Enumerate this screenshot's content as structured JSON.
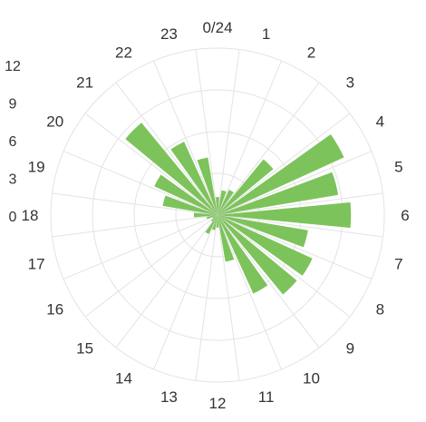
{
  "chart_data": {
    "type": "polar-bar",
    "title": "",
    "angular_labels": [
      "0/24",
      "1",
      "2",
      "3",
      "4",
      "5",
      "6",
      "7",
      "8",
      "9",
      "10",
      "11",
      "12",
      "13",
      "14",
      "15",
      "16",
      "17",
      "18",
      "19",
      "20",
      "21",
      "22",
      "23"
    ],
    "radial_ticks": [
      "0",
      "3",
      "6",
      "9",
      "12"
    ],
    "radial_range": [
      0,
      12
    ],
    "grid": true,
    "series": [
      {
        "color": "#7dc35b",
        "values": [
          1.3,
          1.8,
          2.0,
          5.2,
          10.0,
          8.8,
          9.6,
          6.6,
          7.5,
          7.4,
          6.2,
          3.4,
          0.9,
          1.1,
          1.5,
          0.6,
          0.4,
          0.8,
          1.7,
          4.0,
          5.0,
          8.6,
          5.8,
          4.2
        ]
      }
    ]
  }
}
